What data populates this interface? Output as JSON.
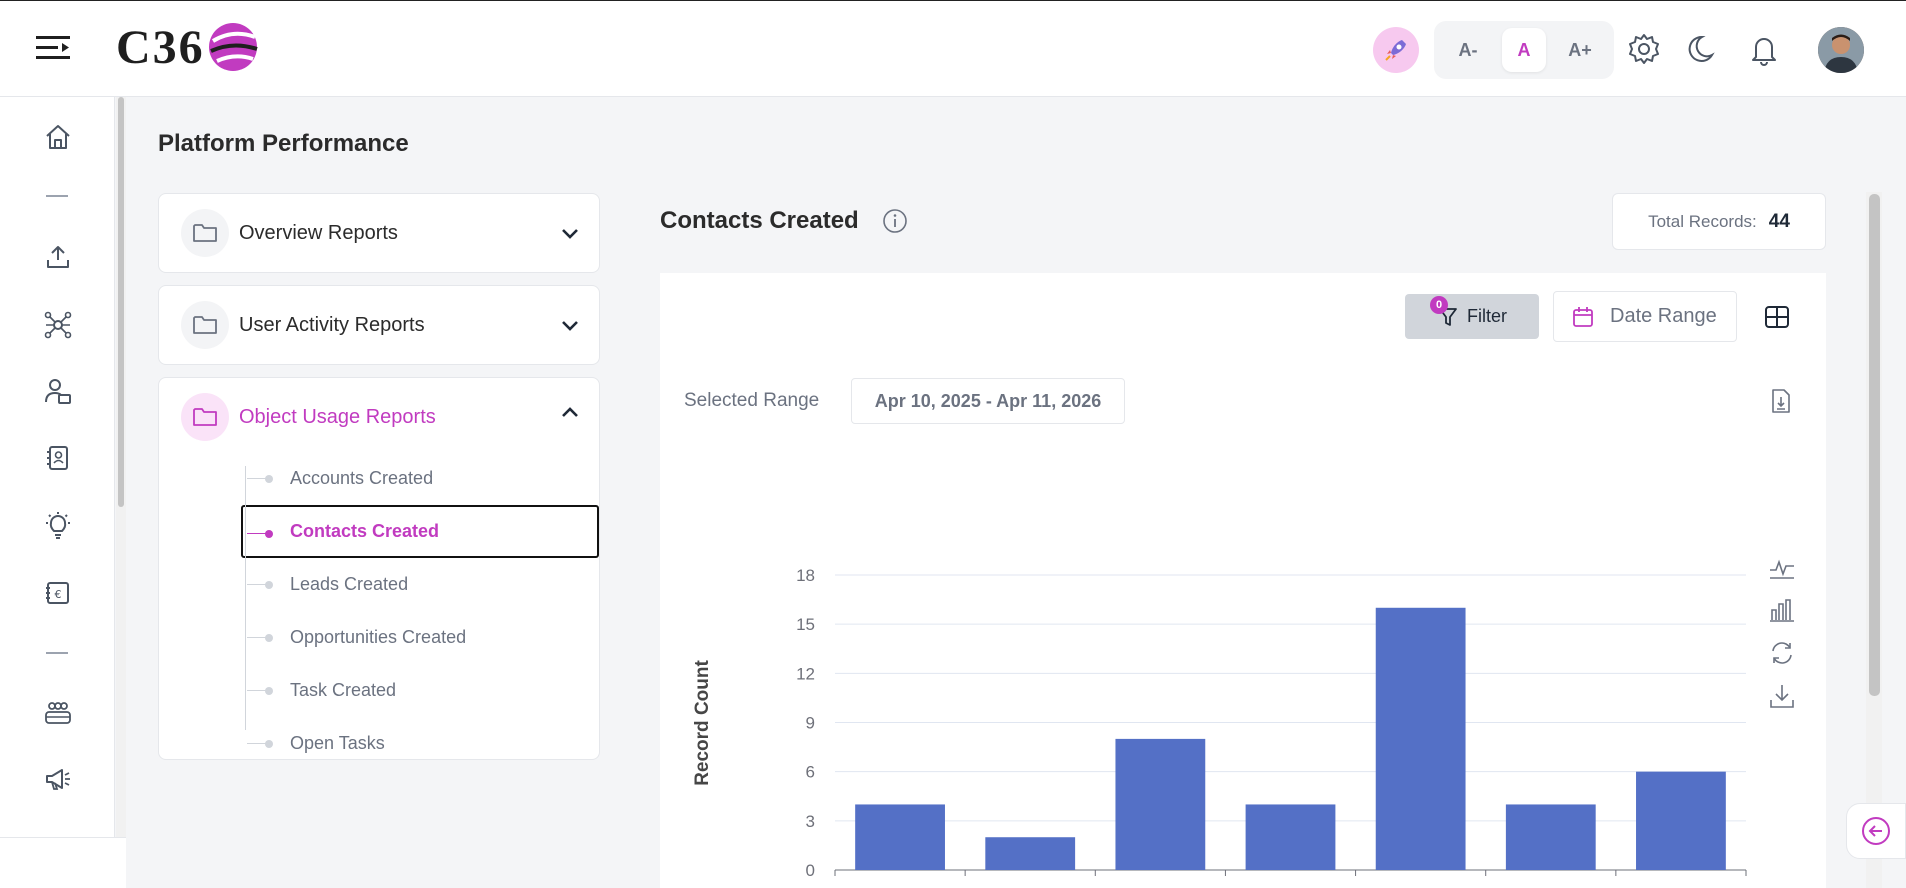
{
  "header": {
    "logo_text": "C36",
    "font_controls": [
      "A-",
      "A",
      "A+"
    ],
    "font_active": "A"
  },
  "page": {
    "title": "Platform Performance"
  },
  "accordion": [
    {
      "label": "Overview Reports",
      "expanded": false
    },
    {
      "label": "User Activity Reports",
      "expanded": false
    },
    {
      "label": "Object Usage Reports",
      "expanded": true,
      "items": [
        {
          "label": "Accounts Created",
          "active": false
        },
        {
          "label": "Contacts Created",
          "active": true
        },
        {
          "label": "Leads Created",
          "active": false
        },
        {
          "label": "Opportunities Created",
          "active": false
        },
        {
          "label": "Task Created",
          "active": false
        },
        {
          "label": "Open Tasks",
          "active": false
        }
      ]
    }
  ],
  "report": {
    "title": "Contacts Created",
    "total_label": "Total Records:",
    "total_value": "44",
    "filter_label": "Filter",
    "filter_count": "0",
    "date_range_label": "Date Range",
    "selected_range_label": "Selected Range",
    "selected_range_value": "Apr 10, 2025 - Apr 11, 2026"
  },
  "colors": {
    "accent": "#c13bc0",
    "bar": "#5470c6"
  },
  "chart_data": {
    "type": "bar",
    "ylabel": "Record Count",
    "ylim": [
      0,
      18
    ],
    "yticks": [
      0,
      3,
      6,
      9,
      12,
      15,
      18
    ],
    "values": [
      4,
      2,
      8,
      4,
      16,
      4,
      6
    ],
    "grid": true
  }
}
